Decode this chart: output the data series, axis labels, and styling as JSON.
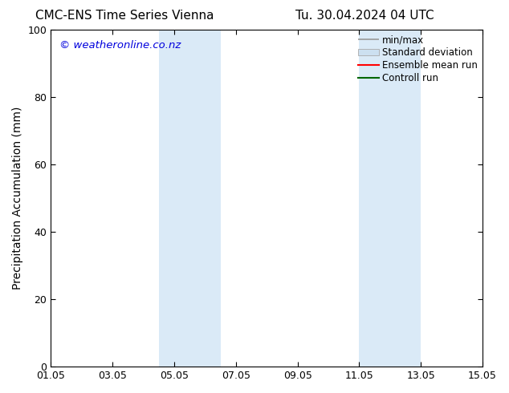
{
  "title_left": "CMC-ENS Time Series Vienna",
  "title_right": "Tu. 30.04.2024 04 UTC",
  "ylabel": "Precipitation Accumulation (mm)",
  "ylim": [
    0,
    100
  ],
  "yticks": [
    0,
    20,
    40,
    60,
    80,
    100
  ],
  "xlim": [
    0,
    14
  ],
  "xtick_labels": [
    "01.05",
    "03.05",
    "05.05",
    "07.05",
    "09.05",
    "11.05",
    "13.05",
    "15.05"
  ],
  "xtick_positions": [
    0,
    2,
    4,
    6,
    8,
    10,
    12,
    14
  ],
  "shaded_regions": [
    {
      "x_start": 3.5,
      "x_end": 5.5,
      "color": "#daeaf7"
    },
    {
      "x_start": 10.0,
      "x_end": 12.0,
      "color": "#daeaf7"
    }
  ],
  "watermark_text": "© weatheronline.co.nz",
  "watermark_color": "#0000dd",
  "watermark_fontsize": 9.5,
  "background_color": "#ffffff",
  "plot_bg_color": "#ffffff",
  "legend_entries": [
    {
      "label": "min/max",
      "color": "#aaaaaa",
      "style": "errorbar"
    },
    {
      "label": "Standard deviation",
      "color": "#cce0f0",
      "style": "box"
    },
    {
      "label": "Ensemble mean run",
      "color": "#ff0000",
      "style": "line"
    },
    {
      "label": "Controll run",
      "color": "#006600",
      "style": "line"
    }
  ],
  "title_fontsize": 11,
  "axis_label_fontsize": 10,
  "tick_fontsize": 9,
  "legend_fontsize": 8.5
}
